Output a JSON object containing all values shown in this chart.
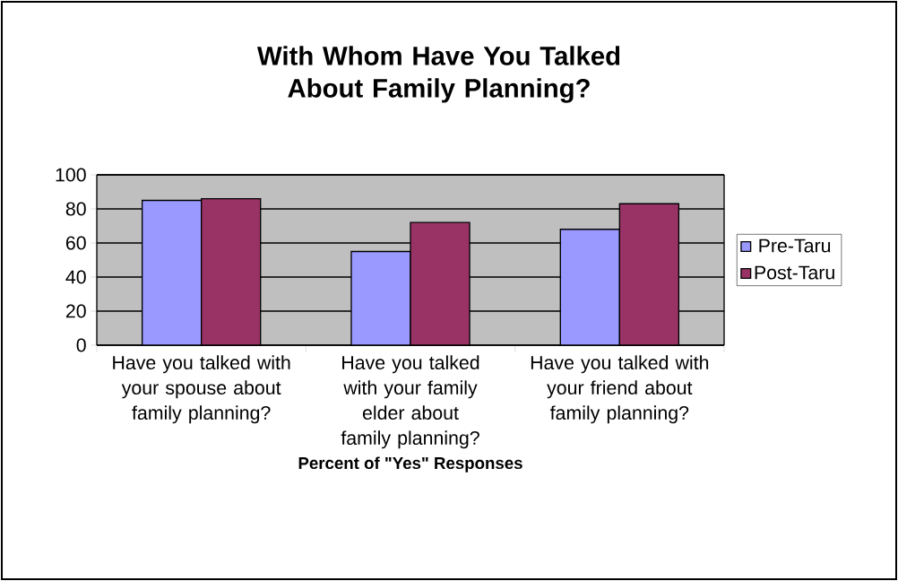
{
  "chart_data": {
    "type": "bar",
    "title": "With Whom Have You Talked About Family Planning?",
    "xlabel": "Percent  of \"Yes\" Responses",
    "categories": [
      "Have you talked with your spouse about family planning?",
      "Have you talked with your family elder about family planning?",
      "Have you talked with your friend about family planning?"
    ],
    "series": [
      {
        "name": "Pre-Taru",
        "color": "#9999ff",
        "values": [
          85,
          55,
          68
        ]
      },
      {
        "name": "Post-Taru",
        "color": "#993366",
        "values": [
          86,
          72,
          83
        ]
      }
    ],
    "ylim": [
      0,
      100
    ],
    "yticks": [
      0,
      20,
      40,
      60,
      80,
      100
    ],
    "grid": "y",
    "legend": "right"
  }
}
